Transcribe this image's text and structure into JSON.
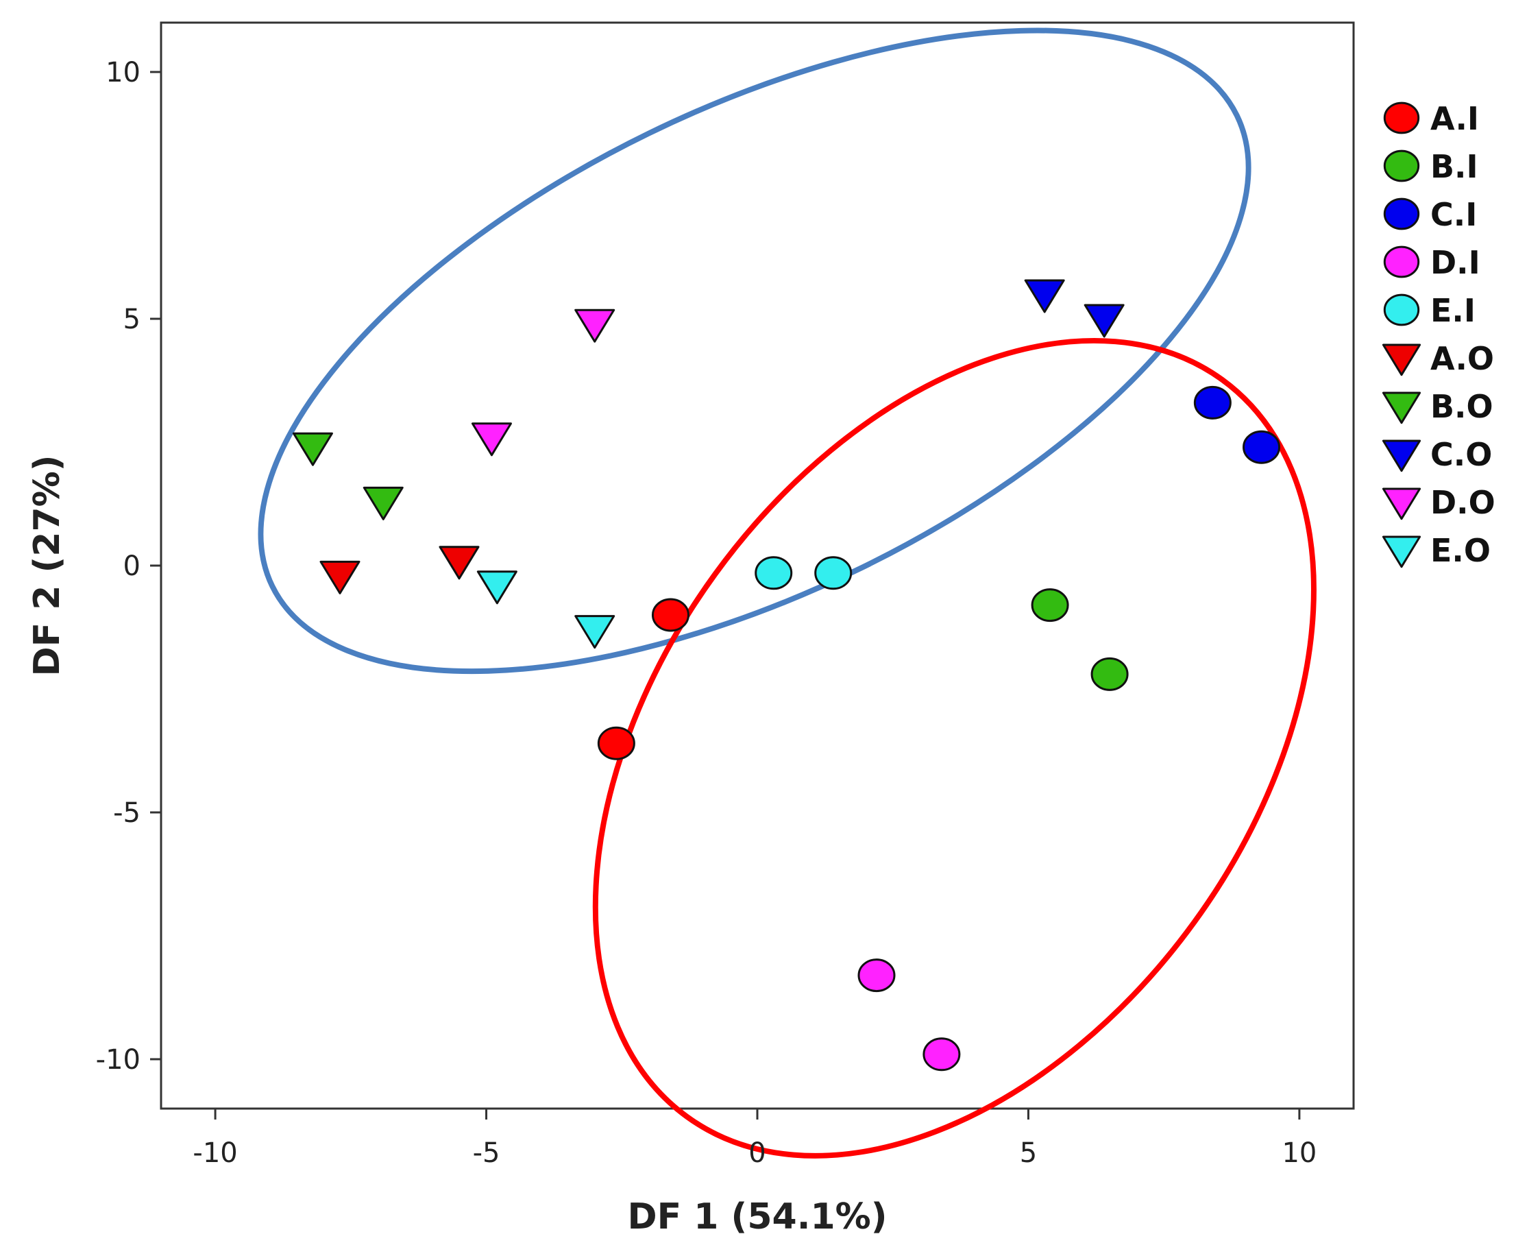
{
  "chart_data": {
    "type": "scatter",
    "title": "",
    "xlabel": "DF 1 (54.1%)",
    "ylabel": "DF 2 (27%)",
    "xlim": [
      -11,
      11
    ],
    "ylim": [
      -11,
      11
    ],
    "xticks": [
      -10,
      -5,
      0,
      5,
      10
    ],
    "yticks": [
      10,
      5,
      0,
      -5,
      -10
    ],
    "xtick_labels": [
      "-10",
      "-5",
      "0",
      "5",
      "10"
    ],
    "ytick_labels": [
      "10",
      "5",
      "0",
      "-5",
      "-10"
    ],
    "grid": false,
    "legend_position": "right",
    "series": [
      {
        "name": "A.I",
        "color": "#ff0000",
        "marker": "circle",
        "points": [
          [
            -1.6,
            -1.0
          ],
          [
            -2.6,
            -3.6
          ]
        ]
      },
      {
        "name": "B.I",
        "color": "#33bb11",
        "marker": "circle",
        "points": [
          [
            5.4,
            -0.8
          ],
          [
            6.5,
            -2.2
          ]
        ]
      },
      {
        "name": "C.I",
        "color": "#0000ee",
        "marker": "circle",
        "points": [
          [
            8.4,
            3.3
          ],
          [
            9.3,
            2.4
          ]
        ]
      },
      {
        "name": "D.I",
        "color": "#ff22ff",
        "marker": "circle",
        "points": [
          [
            2.2,
            -8.3
          ],
          [
            3.4,
            -9.9
          ]
        ]
      },
      {
        "name": "E.I",
        "color": "#33eeee",
        "marker": "circle",
        "points": [
          [
            0.3,
            -0.15
          ],
          [
            1.4,
            -0.15
          ]
        ]
      },
      {
        "name": "A.O",
        "color": "#ee0000",
        "marker": "triangle-down",
        "points": [
          [
            -7.7,
            -0.2
          ],
          [
            -5.5,
            0.1
          ]
        ]
      },
      {
        "name": "B.O",
        "color": "#33bb11",
        "marker": "triangle-down",
        "points": [
          [
            -8.2,
            2.4
          ],
          [
            -6.9,
            1.3
          ]
        ]
      },
      {
        "name": "C.O",
        "color": "#0000ee",
        "marker": "triangle-down",
        "points": [
          [
            5.3,
            5.5
          ],
          [
            6.4,
            5.0
          ]
        ]
      },
      {
        "name": "D.O",
        "color": "#ff22ff",
        "marker": "triangle-down",
        "points": [
          [
            -3.0,
            4.9
          ],
          [
            -4.9,
            2.6
          ]
        ]
      },
      {
        "name": "E.O",
        "color": "#33eeee",
        "marker": "triangle-down",
        "points": [
          [
            -4.8,
            -0.4
          ],
          [
            -3.0,
            -1.3
          ]
        ]
      }
    ],
    "ellipses": [
      {
        "name": "outer-group-ellipse",
        "color": "#4a7fc1",
        "center": [
          -0.05,
          4.35
        ],
        "semi_major": 9.9,
        "semi_minor": 4.9,
        "angle_deg": 26
      },
      {
        "name": "inner-group-ellipse",
        "color": "#ff0000",
        "center": [
          3.64,
          -3.7
        ],
        "semi_major": 8.4,
        "semi_minor": 6.0,
        "angle_deg": 54
      }
    ]
  }
}
